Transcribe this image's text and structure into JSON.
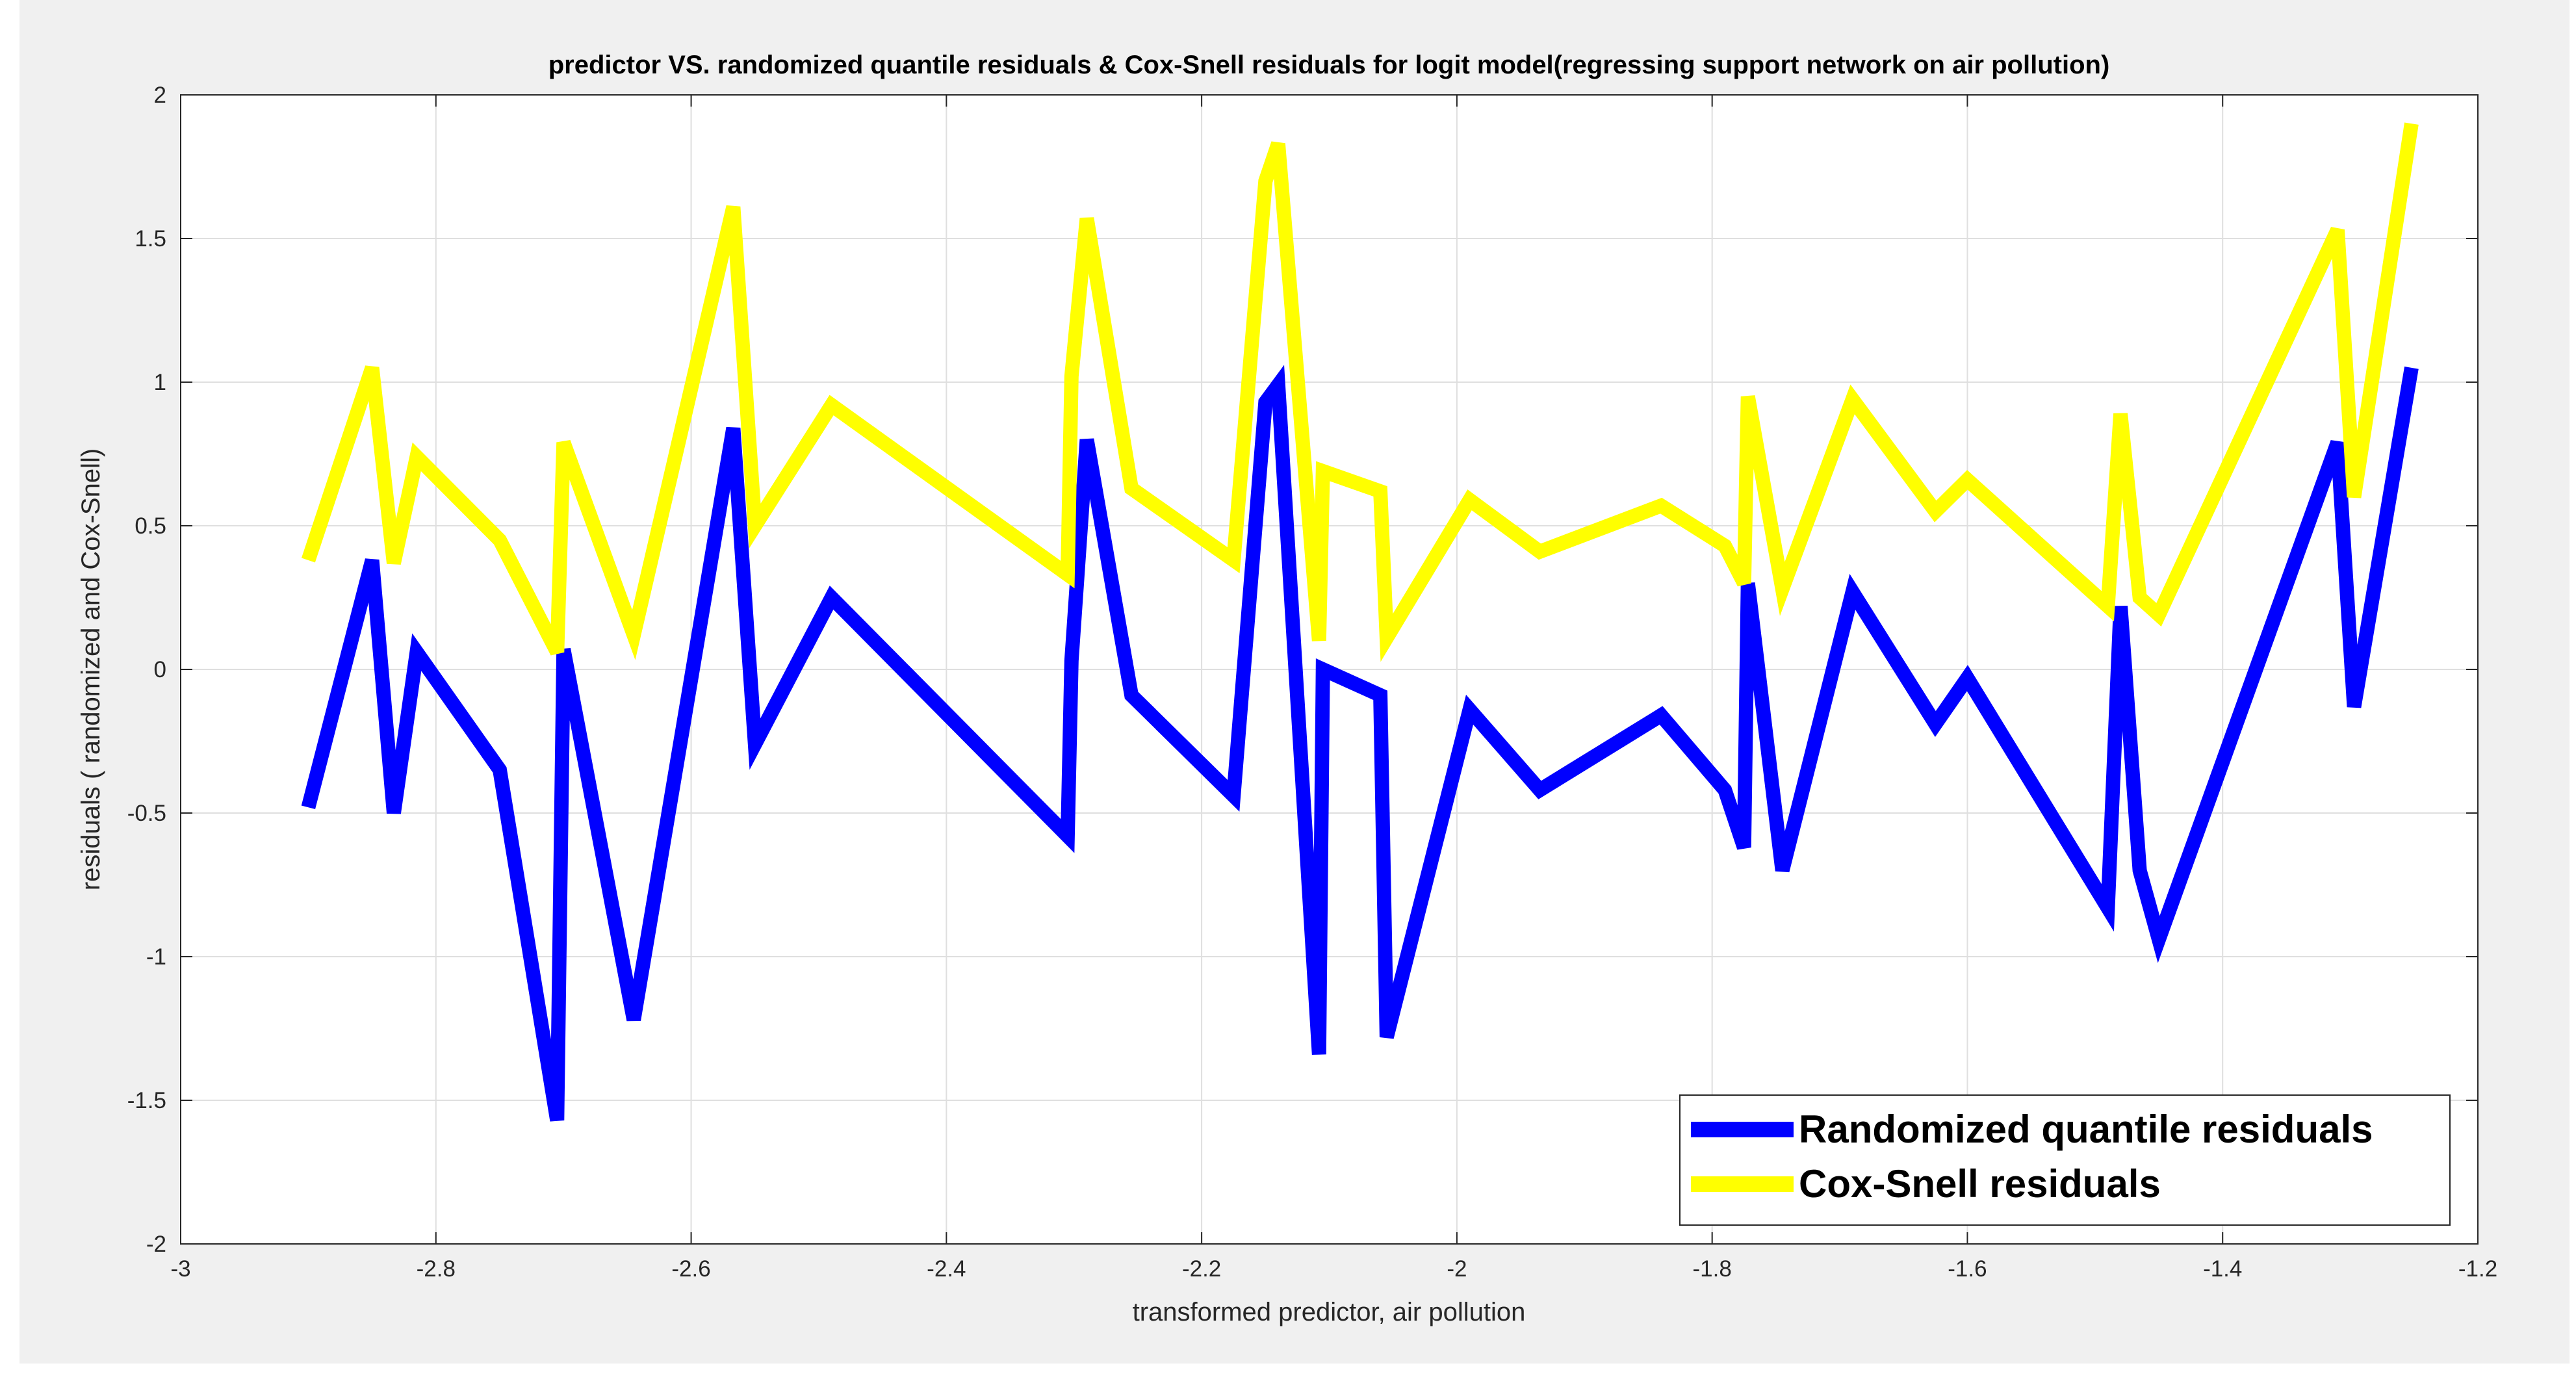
{
  "chart_data": {
    "type": "line",
    "title": "predictor VS. randomized quantile residuals & Cox-Snell residuals for logit model(regressing support network on air pollution)",
    "xlabel": "transformed predictor, air pollution",
    "ylabel": "residuals ( randomized and Cox-Snell)",
    "xlim": [
      -3,
      -1.2
    ],
    "ylim": [
      -2,
      2
    ],
    "xticks": [
      -3,
      -2.8,
      -2.6,
      -2.4,
      -2.2,
      -2,
      -1.8,
      -1.6,
      -1.4,
      -1.2
    ],
    "yticks": [
      -2,
      -1.5,
      -1,
      -0.5,
      0,
      0.5,
      1,
      1.5,
      2
    ],
    "xtick_labels": [
      "-3",
      "-2.8",
      "-2.6",
      "-2.4",
      "-2.2",
      "-2",
      "-1.8",
      "-1.6",
      "-1.4",
      "-1.2"
    ],
    "ytick_labels": [
      "-2",
      "-1.5",
      "-1",
      "-0.5",
      "0",
      "0.5",
      "1",
      "1.5",
      "2"
    ],
    "grid": true,
    "legend_position": "bottom-right",
    "series": [
      {
        "name": "Randomized quantile residuals",
        "color": "#0000ff",
        "x": [
          -2.9,
          -2.85,
          -2.833,
          -2.815,
          -2.75,
          -2.705,
          -2.7,
          -2.645,
          -2.567,
          -2.55,
          -2.49,
          -2.305,
          -2.302,
          -2.29,
          -2.255,
          -2.175,
          -2.15,
          -2.14,
          -2.108,
          -2.105,
          -2.06,
          -2.055,
          -1.99,
          -1.935,
          -1.84,
          -1.79,
          -1.775,
          -1.772,
          -1.745,
          -1.69,
          -1.625,
          -1.6,
          -1.49,
          -1.48,
          -1.465,
          -1.45,
          -1.31,
          -1.297,
          -1.252
        ],
        "y": [
          -0.48,
          0.38,
          -0.5,
          0.06,
          -0.35,
          -1.57,
          0.07,
          -1.22,
          0.84,
          -0.26,
          0.25,
          -0.58,
          0.03,
          0.8,
          -0.09,
          -0.44,
          0.93,
          0.99,
          -1.34,
          0.0,
          -0.09,
          -1.28,
          -0.14,
          -0.42,
          -0.16,
          -0.42,
          -0.62,
          0.3,
          -0.7,
          0.27,
          -0.19,
          -0.03,
          -0.83,
          0.22,
          -0.7,
          -0.94,
          0.79,
          -0.13,
          1.05
        ]
      },
      {
        "name": "Cox-Snell residuals",
        "color": "#ffff00",
        "x": [
          -2.9,
          -2.85,
          -2.833,
          -2.815,
          -2.75,
          -2.705,
          -2.7,
          -2.645,
          -2.567,
          -2.55,
          -2.49,
          -2.305,
          -2.302,
          -2.29,
          -2.255,
          -2.175,
          -2.15,
          -2.14,
          -2.108,
          -2.105,
          -2.06,
          -2.055,
          -1.99,
          -1.935,
          -1.84,
          -1.79,
          -1.775,
          -1.772,
          -1.745,
          -1.69,
          -1.625,
          -1.6,
          -1.49,
          -1.48,
          -1.465,
          -1.45,
          -1.31,
          -1.297,
          -1.252
        ],
        "y": [
          0.38,
          1.05,
          0.37,
          0.74,
          0.45,
          0.06,
          0.79,
          0.12,
          1.61,
          0.5,
          0.92,
          0.33,
          1.02,
          1.57,
          0.63,
          0.38,
          1.7,
          1.83,
          0.1,
          0.69,
          0.62,
          0.11,
          0.59,
          0.41,
          0.57,
          0.43,
          0.3,
          0.95,
          0.28,
          0.94,
          0.55,
          0.66,
          0.22,
          0.89,
          0.25,
          0.19,
          1.53,
          0.6,
          1.9
        ]
      }
    ]
  }
}
